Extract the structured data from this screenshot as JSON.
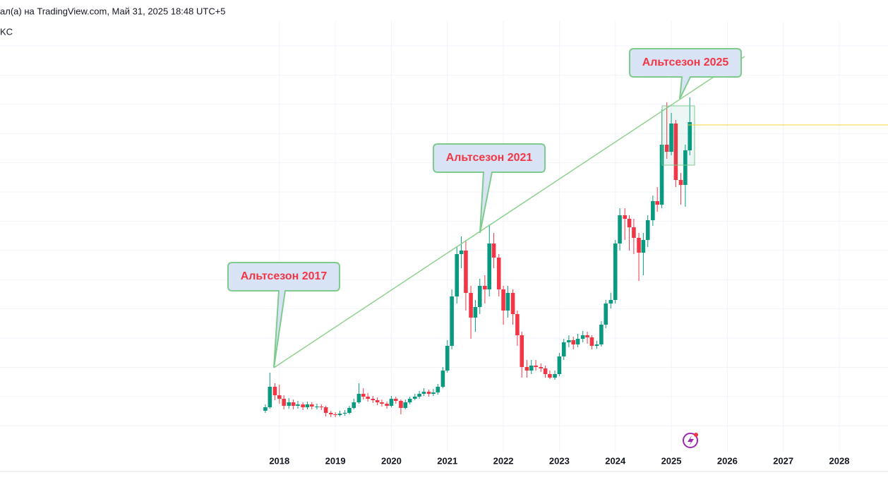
{
  "header": {
    "line1": "ал(а) на TradingView.com, Май 31, 2025 18:48 UTC+5",
    "line2": "KC"
  },
  "chart_data": {
    "type": "candlestick",
    "x": [
      2017.75,
      2017.83,
      2017.92,
      2018,
      2018.08,
      2018.17,
      2018.25,
      2018.33,
      2018.42,
      2018.5,
      2018.58,
      2018.67,
      2018.75,
      2018.83,
      2018.92,
      2019,
      2019.08,
      2019.17,
      2019.25,
      2019.33,
      2019.42,
      2019.5,
      2019.58,
      2019.67,
      2019.75,
      2019.83,
      2019.92,
      2020,
      2020.08,
      2020.17,
      2020.25,
      2020.33,
      2020.42,
      2020.5,
      2020.58,
      2020.67,
      2020.75,
      2020.83,
      2020.92,
      2021,
      2021.08,
      2021.17,
      2021.25,
      2021.33,
      2021.42,
      2021.5,
      2021.58,
      2021.67,
      2021.75,
      2021.83,
      2021.92,
      2022,
      2022.08,
      2022.17,
      2022.25,
      2022.33,
      2022.42,
      2022.5,
      2022.58,
      2022.67,
      2022.75,
      2022.83,
      2022.92,
      2023,
      2023.08,
      2023.17,
      2023.25,
      2023.33,
      2023.42,
      2023.5,
      2023.58,
      2023.67,
      2023.75,
      2023.83,
      2023.92,
      2024,
      2024.08,
      2024.17,
      2024.25,
      2024.33,
      2024.42,
      2024.5,
      2024.58,
      2024.67,
      2024.75,
      2024.83,
      2024.92,
      2025,
      2025.08,
      2025.17,
      2025.25,
      2025.33
    ],
    "open": [
      11.6,
      12.6,
      18.4,
      16,
      15,
      13,
      14,
      13,
      13.4,
      12.6,
      13.4,
      12.8,
      12.8,
      12.6,
      11,
      10.6,
      10.4,
      10.8,
      11,
      12.4,
      14,
      16.4,
      15.6,
      15,
      14.6,
      14,
      13.6,
      13,
      15,
      14.4,
      12.4,
      14,
      15,
      15.6,
      16.4,
      17,
      16.4,
      16.8,
      18.4,
      23,
      30,
      44,
      56,
      57,
      45,
      38,
      41,
      47,
      46,
      59,
      55,
      46,
      40,
      45,
      39,
      33,
      24,
      23,
      24.4,
      24,
      23.6,
      22,
      21,
      22,
      27,
      31,
      31.6,
      30.4,
      32,
      33,
      32.4,
      30,
      30.4,
      36,
      42,
      43,
      59,
      67,
      66,
      63.6,
      60.6,
      56.4,
      60,
      65.6,
      71,
      70,
      87,
      85,
      93,
      77,
      75.6,
      85.4
    ],
    "high": [
      13.4,
      22.4,
      19.4,
      19,
      16,
      15.2,
      14.8,
      14.4,
      14,
      14.2,
      14,
      13.6,
      13.4,
      13,
      11.6,
      11.2,
      11.6,
      11.8,
      13,
      15,
      19.4,
      18,
      16.6,
      15.8,
      15.4,
      14.8,
      14.2,
      15.8,
      15.6,
      14.8,
      14.8,
      15.6,
      16.4,
      17.2,
      18,
      17.6,
      17.8,
      19.2,
      24,
      31.6,
      46,
      58,
      61,
      60,
      47,
      43,
      49,
      50,
      64.4,
      62,
      56,
      47,
      47,
      46,
      40,
      34,
      26,
      26,
      26,
      25,
      24.4,
      23,
      23,
      28,
      32,
      33,
      32.6,
      33.4,
      34.2,
      34,
      33,
      31.4,
      37,
      43,
      45,
      60,
      69,
      69,
      67,
      66,
      62,
      62,
      67,
      72.6,
      75,
      97,
      99,
      96,
      94,
      79,
      87,
      100.4
    ],
    "low": [
      11,
      12.2,
      14.6,
      13.6,
      12,
      12.2,
      12,
      12.2,
      11.8,
      12,
      12,
      12,
      11.8,
      10,
      9.8,
      9.8,
      10,
      10.2,
      10.6,
      12,
      13.6,
      14.8,
      14.2,
      13.8,
      13.2,
      12.8,
      12.2,
      12.6,
      13.6,
      10.6,
      12,
      13.4,
      14.6,
      15,
      15.8,
      15.6,
      15.8,
      16.2,
      18,
      22.4,
      29,
      42,
      52,
      40,
      32,
      34,
      39,
      42,
      44,
      52,
      44,
      36,
      38,
      36,
      30,
      21,
      21,
      22,
      23,
      22.6,
      21,
      20.6,
      20.4,
      21.4,
      26,
      29.6,
      29,
      29.6,
      31,
      30.6,
      29,
      29.2,
      29.8,
      35,
      40.6,
      42,
      57,
      60,
      57,
      56,
      48.4,
      50,
      58,
      64,
      68,
      69,
      83,
      84,
      75,
      70,
      69.4,
      84
    ],
    "close": [
      12.6,
      18.4,
      16,
      15,
      13,
      14,
      13,
      13.4,
      12.6,
      13.4,
      12.8,
      12.8,
      12.6,
      11,
      10.6,
      10.4,
      10.8,
      11,
      12.4,
      14,
      16.4,
      15.6,
      15,
      14.6,
      14,
      13.6,
      13,
      15,
      14.4,
      12.4,
      14,
      15,
      15.6,
      16.4,
      17,
      16.4,
      16.8,
      18.4,
      23,
      30,
      44,
      56,
      57,
      45,
      38,
      41,
      47,
      46,
      59,
      55,
      46,
      40,
      45,
      39,
      33,
      24,
      23,
      24.4,
      24,
      23.6,
      22,
      21,
      22,
      27,
      31,
      31.6,
      30.4,
      32,
      33,
      32.4,
      30,
      30.4,
      36,
      42,
      43,
      59,
      67,
      66,
      63.6,
      60.6,
      56.4,
      60,
      65.6,
      71,
      70,
      87,
      85,
      93,
      77,
      75.6,
      85.4,
      93.4
    ],
    "up_color": "#089981",
    "down_color": "#f23645",
    "xlim": [
      2013.01,
      2028.87
    ],
    "xticks": [
      2018,
      2019,
      2020,
      2021,
      2022,
      2023,
      2024,
      2025,
      2026,
      2027,
      2028
    ],
    "ylim": [
      0,
      122
    ],
    "grid": true,
    "annotations": [
      "Альтсезон 2017",
      "Альтсезон 2021",
      "Альтсезон 2025"
    ]
  }
}
